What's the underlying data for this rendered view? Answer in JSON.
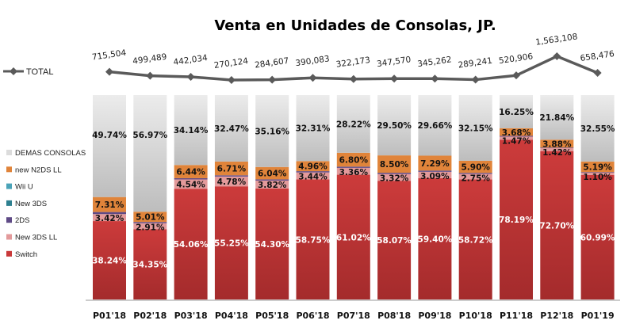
{
  "chart_data": {
    "type": "bar",
    "stacked": true,
    "percent_stacked": true,
    "title": "Venta en Unidades de Consolas,  JP.",
    "xlabel": "",
    "ylabel": "",
    "ylim": [
      0,
      100
    ],
    "grid": false,
    "legend_position": "left",
    "categories": [
      "P01'18",
      "P02'18",
      "P03'18",
      "P04'18",
      "P05'18",
      "P06'18",
      "P07'18",
      "P08'18",
      "P09'18",
      "P10'18",
      "P11'18",
      "P12'18",
      "P01'19"
    ],
    "series": [
      {
        "name": "Switch",
        "color": "#C9393A",
        "values": [
          38.24,
          34.35,
          54.06,
          55.25,
          54.3,
          58.75,
          61.02,
          58.07,
          59.4,
          58.72,
          78.19,
          72.7,
          60.99
        ],
        "labels": [
          "38.24%",
          "34.35%",
          "54.06%",
          "55.25%",
          "54.30%",
          "58.75%",
          "61.02%",
          "58.07%",
          "59.40%",
          "58.72%",
          "78.19%",
          "72.70%",
          "60.99%"
        ]
      },
      {
        "name": "New 3DS LL",
        "color": "#E39A9B",
        "values": [
          3.42,
          2.91,
          4.54,
          4.78,
          3.82,
          3.44,
          3.36,
          3.32,
          3.09,
          2.75,
          1.47,
          1.42,
          1.1
        ],
        "labels": [
          "3.42%",
          "2.91%",
          "4.54%",
          "4.78%",
          "3.82%",
          "3.44%",
          "3.36%",
          "3.32%",
          "3.09%",
          "2.75%",
          "1.47%",
          "1.42%",
          "1.10%"
        ]
      },
      {
        "name": "2DS",
        "color": "#5F4A86",
        "values": [
          1.0,
          0.6,
          0.6,
          0.6,
          0.6,
          0.6,
          0.6,
          0.6,
          0.6,
          0.5,
          0.4,
          0.3,
          0.3
        ],
        "labels": [
          "",
          "",
          "",
          "",
          "",
          "",
          "",
          "",
          "",
          "",
          "",
          "",
          ""
        ]
      },
      {
        "name": "New 3DS",
        "color": "#2E8090",
        "values": [
          0,
          0,
          0,
          0,
          0,
          0,
          0,
          0,
          0,
          0,
          0,
          0,
          0
        ],
        "labels": [
          "",
          "",
          "",
          "",
          "",
          "",
          "",
          "",
          "",
          "",
          "",
          "",
          ""
        ]
      },
      {
        "name": "Wii U",
        "color": "#4AA3B8",
        "values": [
          0,
          0,
          0,
          0,
          0,
          0,
          0,
          0,
          0,
          0,
          0,
          0,
          0
        ],
        "labels": [
          "",
          "",
          "",
          "",
          "",
          "",
          "",
          "",
          "",
          "",
          "",
          "",
          ""
        ]
      },
      {
        "name": "new N2DS LL",
        "color": "#E0843A",
        "values": [
          7.31,
          5.01,
          6.44,
          6.71,
          6.04,
          4.96,
          6.8,
          8.5,
          7.29,
          5.9,
          3.68,
          3.88,
          5.19
        ],
        "labels": [
          "7.31%",
          "5.01%",
          "6.44%",
          "6.71%",
          "6.04%",
          "4.96%",
          "6.80%",
          "8.50%",
          "7.29%",
          "5.90%",
          "3.68%",
          "3.88%",
          "5.19%"
        ]
      },
      {
        "name": "DEMAS CONSOLAS",
        "color": "#D4D4D4",
        "values": [
          49.74,
          56.97,
          34.14,
          32.47,
          35.16,
          32.31,
          28.22,
          29.5,
          29.66,
          32.15,
          16.25,
          21.84,
          32.55
        ],
        "labels": [
          "49.74%",
          "56.97%",
          "34.14%",
          "32.47%",
          "35.16%",
          "32.31%",
          "28.22%",
          "29.50%",
          "29.66%",
          "32.15%",
          "16.25%",
          "21.84%",
          "32.55%"
        ]
      }
    ],
    "line_series": {
      "name": "TOTAL",
      "color": "#5A5A5A",
      "values": [
        715504,
        499489,
        442034,
        270124,
        284607,
        390083,
        322173,
        347570,
        345262,
        289241,
        520906,
        1563108,
        658476
      ],
      "labels": [
        "715,504",
        "499,489",
        "442,034",
        "270,124",
        "284,607",
        "390,083",
        "322,173",
        "347,570",
        "345,262",
        "289,241",
        "520,906",
        "1,563,108",
        "658,476"
      ]
    },
    "legend": {
      "entries": [
        "DEMAS CONSOLAS",
        "new N2DS LL",
        "Wii U",
        "New 3DS",
        "2DS",
        "New 3DS LL",
        "Switch"
      ],
      "line_entry": "TOTAL"
    }
  }
}
